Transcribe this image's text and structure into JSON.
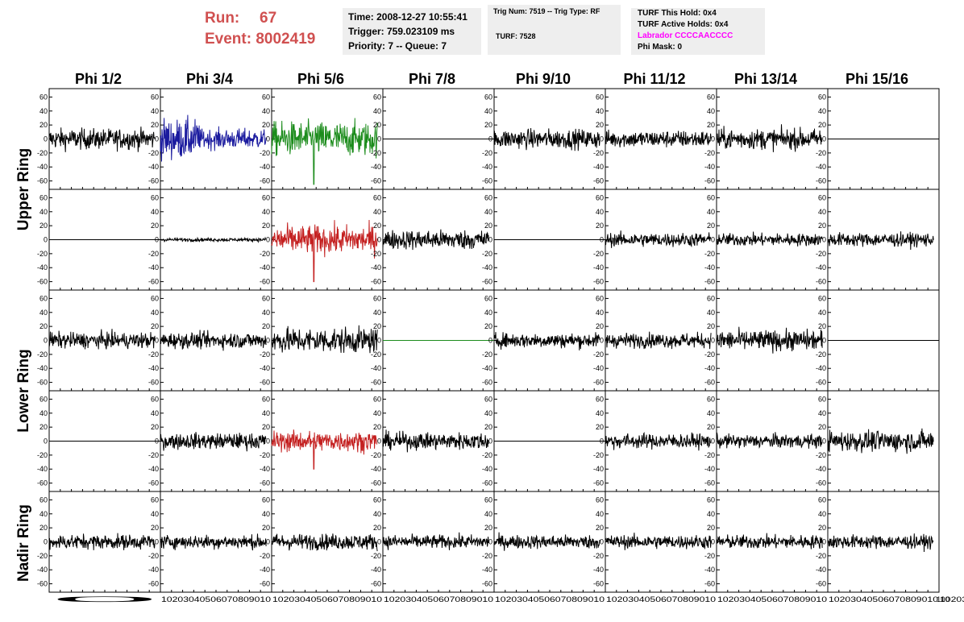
{
  "run": {
    "run_label": "Run:",
    "run_value": "67",
    "event_label": "Event:",
    "event_value": "8002419"
  },
  "info_time": {
    "time": "Time: 2008-12-27 10:55:41",
    "trigger": "Trigger: 759.023109 ms",
    "priority": "Priority: 7 -- Queue: 7"
  },
  "info_trig": {
    "trig": "Trig Num: 7519 -- Trig Type: RF",
    "turf": "TURF: 7528"
  },
  "info_turf": {
    "hold": "TURF This Hold: 0x4",
    "active": "TURF Active Holds: 0x4",
    "labrador": "Labrador CCCCAACCCC",
    "phi_mask": "Phi Mask: 0"
  },
  "columns": [
    "Phi 1/2",
    "Phi 3/4",
    "Phi 5/6",
    "Phi 7/8",
    "Phi 9/10",
    "Phi 11/12",
    "Phi 13/14",
    "Phi 15/16"
  ],
  "ring_labels": {
    "upper": "Upper Ring",
    "lower": "Lower Ring",
    "nadir": "Nadir Ring"
  },
  "colors": {
    "black": "#000000",
    "blue": "#1a1a9e",
    "green": "#1c8c1c",
    "red": "#c42020",
    "header_red": "#d05050",
    "magenta": "#ff00ff"
  },
  "chart_data": {
    "type": "line",
    "x_range": [
      0,
      100
    ],
    "y_range": [
      -72,
      72
    ],
    "y_ticks": [
      "60",
      "40",
      "20",
      "0",
      "-20",
      "-40",
      "-60"
    ],
    "x_ticks": [
      "0",
      "10",
      "20",
      "30",
      "40",
      "50",
      "60",
      "70",
      "80",
      "90",
      "100"
    ],
    "x_tick_row": "0 10203040506070809010 10203040506070809010 10203040506070809010 10203040506070809010 10203040506070809010 10203040506070809010 10203040506070809010 10203040506070809010",
    "grid": false,
    "traces": [
      [
        {
          "amp": 18,
          "color": "black"
        },
        {
          "amp": 32,
          "color": "blue",
          "envelope": "early"
        },
        {
          "amp": 30,
          "color": "green",
          "spike": 65
        },
        {
          "amp": 0,
          "color": "black",
          "flat": true
        },
        {
          "amp": 17,
          "color": "black"
        },
        {
          "amp": 15,
          "color": "black"
        },
        {
          "amp": 18,
          "color": "black"
        },
        {
          "amp": 0,
          "color": "black",
          "flat": true
        }
      ],
      [
        {
          "amp": 0,
          "color": "black",
          "flat": true
        },
        {
          "amp": 3,
          "color": "black"
        },
        {
          "amp": 25,
          "color": "red",
          "spike": 60
        },
        {
          "amp": 17,
          "color": "black"
        },
        {
          "amp": 0,
          "color": "black",
          "flat": true
        },
        {
          "amp": 12,
          "color": "black"
        },
        {
          "amp": 11,
          "color": "black"
        },
        {
          "amp": 12,
          "color": "black"
        }
      ],
      [
        {
          "amp": 14,
          "color": "black"
        },
        {
          "amp": 14,
          "color": "black"
        },
        {
          "amp": 22,
          "color": "black"
        },
        {
          "amp": 0,
          "color": "green",
          "flat": true
        },
        {
          "amp": 13,
          "color": "black"
        },
        {
          "amp": 13,
          "color": "black"
        },
        {
          "amp": 18,
          "color": "black"
        },
        {
          "amp": 0,
          "color": "black",
          "flat": true
        }
      ],
      [
        {
          "amp": 0,
          "color": "black",
          "flat": true
        },
        {
          "amp": 14,
          "color": "black"
        },
        {
          "amp": 18,
          "color": "red",
          "spike": 40
        },
        {
          "amp": 15,
          "color": "black"
        },
        {
          "amp": 0,
          "color": "black",
          "flat": true
        },
        {
          "amp": 13,
          "color": "black"
        },
        {
          "amp": 12,
          "color": "black"
        },
        {
          "amp": 18,
          "color": "black"
        }
      ],
      [
        {
          "amp": 13,
          "color": "black"
        },
        {
          "amp": 12,
          "color": "black"
        },
        {
          "amp": 14,
          "color": "black"
        },
        {
          "amp": 12,
          "color": "black"
        },
        {
          "amp": 12,
          "color": "black"
        },
        {
          "amp": 12,
          "color": "black"
        },
        {
          "amp": 12,
          "color": "black"
        },
        {
          "amp": 12,
          "color": "black"
        }
      ]
    ]
  }
}
